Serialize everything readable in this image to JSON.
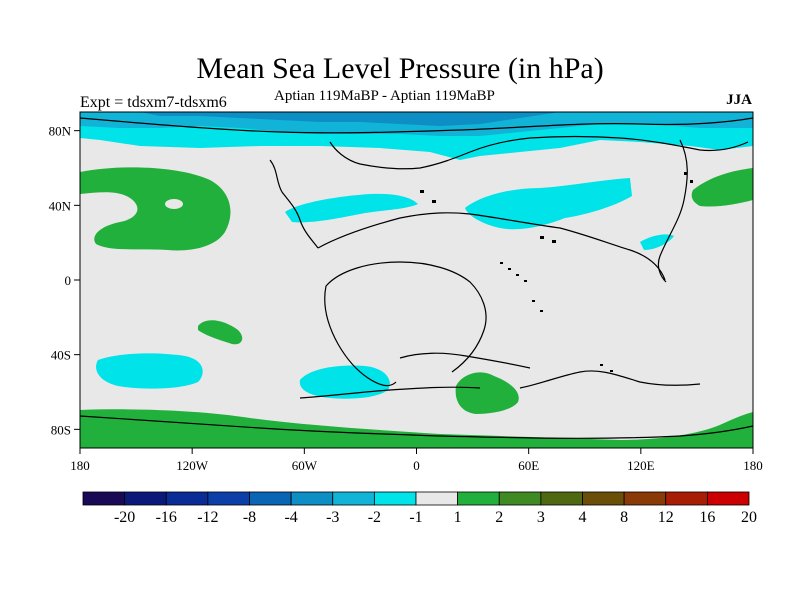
{
  "title": "Mean Sea Level Pressure (in hPa)",
  "left_string": "Expt = tdsxm7-tdsxm6",
  "center_string": "Aptian   119MaBP - Aptian   119MaBP",
  "right_string": "JJA",
  "axes": {
    "lat_ticks": [
      {
        "value": 80,
        "label": "80N"
      },
      {
        "value": 40,
        "label": "40N"
      },
      {
        "value": 0,
        "label": "0"
      },
      {
        "value": -40,
        "label": "40S"
      },
      {
        "value": -80,
        "label": "80S"
      }
    ],
    "lon_ticks": [
      {
        "value": -180,
        "label": "180"
      },
      {
        "value": -120,
        "label": "120W"
      },
      {
        "value": -60,
        "label": "60W"
      },
      {
        "value": 0,
        "label": "0"
      },
      {
        "value": 60,
        "label": "60E"
      },
      {
        "value": 120,
        "label": "120E"
      },
      {
        "value": 180,
        "label": "180"
      }
    ],
    "lon_range": [
      -180,
      180
    ],
    "lat_range": [
      -90,
      90
    ]
  },
  "colorbar": {
    "colors": [
      "#1a0a55",
      "#0b1a7a",
      "#0a2c96",
      "#0c3fa8",
      "#0a66b4",
      "#0d8ec5",
      "#11b4d6",
      "#00e3e8",
      "#e8e8e8",
      "#22b03c",
      "#3f8a22",
      "#4f6812",
      "#6b4e08",
      "#8a3a06",
      "#a81e05",
      "#cc0000"
    ],
    "labels": [
      "-20",
      "-16",
      "-12",
      "-8",
      "-4",
      "-3",
      "-2",
      "-1",
      "1",
      "2",
      "3",
      "4",
      "8",
      "12",
      "16",
      "20"
    ]
  },
  "colors": {
    "land_bg": "#e8e8e8",
    "pos": "#22b03c",
    "neg1": "#00e3e8",
    "neg2": "#11b4d6",
    "neg3": "#0d8ec5"
  }
}
